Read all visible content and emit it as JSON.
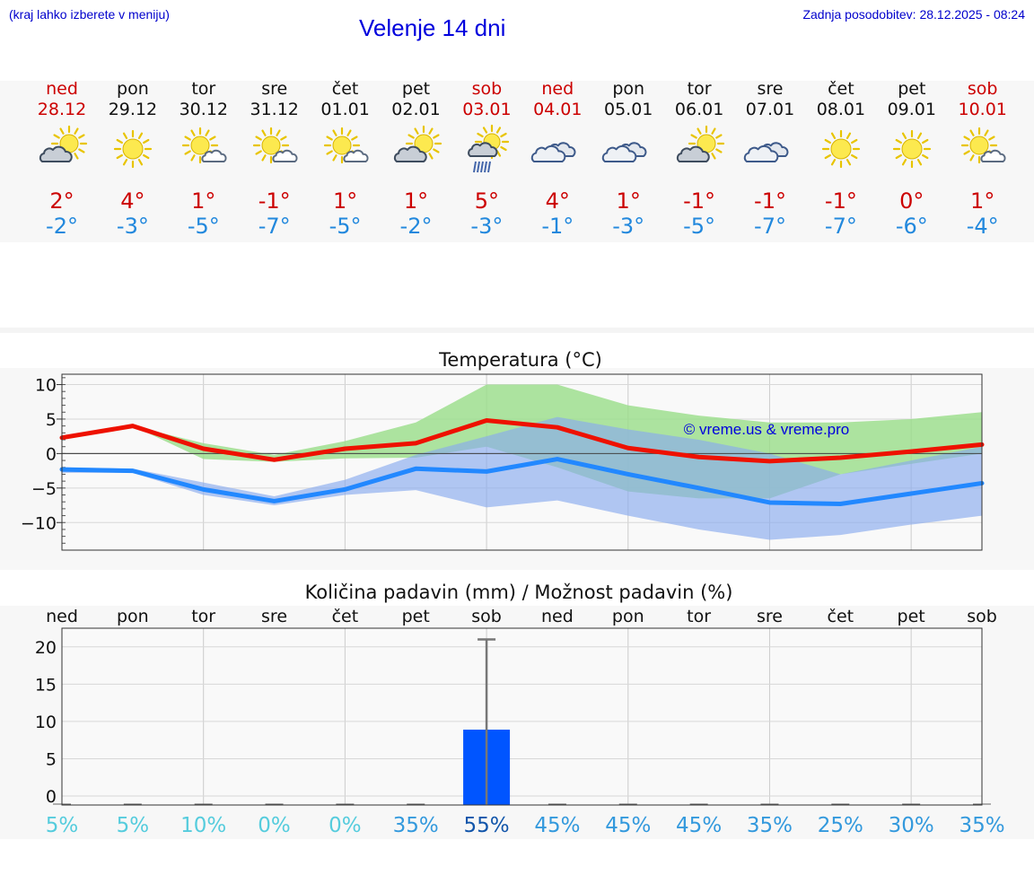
{
  "header": {
    "subtitle_left": "(kraj lahko izberete v meniju)",
    "title": "Velenje 14 dni",
    "updated": "Zadnja posodobitev: 28.12.2025 - 08:24"
  },
  "colors": {
    "max_line": "#ee1100",
    "min_line": "#2288ff",
    "max_band": "#99dd88",
    "min_band": "#88aaee",
    "bar": "#0055ff",
    "weekend": "#cc0000"
  },
  "days": [
    {
      "name": "ned",
      "date": "28.12",
      "weekend": true,
      "icon": "partly-cloudy-icon",
      "tmax": "2°",
      "tmin": "-2°"
    },
    {
      "name": "pon",
      "date": "29.12",
      "weekend": false,
      "icon": "sun-icon",
      "tmax": "4°",
      "tmin": "-3°"
    },
    {
      "name": "tor",
      "date": "30.12",
      "weekend": false,
      "icon": "sun-small-cloud-icon",
      "tmax": "1°",
      "tmin": "-5°"
    },
    {
      "name": "sre",
      "date": "31.12",
      "weekend": false,
      "icon": "sun-small-cloud-icon",
      "tmax": "-1°",
      "tmin": "-7°"
    },
    {
      "name": "čet",
      "date": "01.01",
      "weekend": false,
      "icon": "sun-small-cloud-icon",
      "tmax": "1°",
      "tmin": "-5°"
    },
    {
      "name": "pet",
      "date": "02.01",
      "weekend": false,
      "icon": "partly-cloudy-icon",
      "tmax": "1°",
      "tmin": "-2°"
    },
    {
      "name": "sob",
      "date": "03.01",
      "weekend": true,
      "icon": "sun-rain-icon",
      "tmax": "5°",
      "tmin": "-3°"
    },
    {
      "name": "ned",
      "date": "04.01",
      "weekend": true,
      "icon": "cloudy-icon",
      "tmax": "4°",
      "tmin": "-1°"
    },
    {
      "name": "pon",
      "date": "05.01",
      "weekend": false,
      "icon": "cloudy-icon",
      "tmax": "1°",
      "tmin": "-3°"
    },
    {
      "name": "tor",
      "date": "06.01",
      "weekend": false,
      "icon": "partly-cloudy-icon",
      "tmax": "-1°",
      "tmin": "-5°"
    },
    {
      "name": "sre",
      "date": "07.01",
      "weekend": false,
      "icon": "cloudy-icon",
      "tmax": "-1°",
      "tmin": "-7°"
    },
    {
      "name": "čet",
      "date": "08.01",
      "weekend": false,
      "icon": "sun-icon",
      "tmax": "-1°",
      "tmin": "-7°"
    },
    {
      "name": "pet",
      "date": "09.01",
      "weekend": false,
      "icon": "sun-icon",
      "tmax": "0°",
      "tmin": "-6°"
    },
    {
      "name": "sob",
      "date": "10.01",
      "weekend": true,
      "icon": "sun-small-cloud-icon",
      "tmax": "1°",
      "tmin": "-4°"
    }
  ],
  "chart_data": [
    {
      "type": "line",
      "title": "Temperatura (°C)",
      "watermark": "© vreme.us & vreme.pro",
      "ylim": [
        -14,
        11.5
      ],
      "yticks": [
        10,
        5,
        0,
        -5,
        -10
      ],
      "ytick_labels": [
        "10",
        "5",
        "0",
        "−5",
        "−10"
      ],
      "grid": true,
      "x": [
        0,
        1,
        2,
        3,
        4,
        5,
        6,
        7,
        8,
        9,
        10,
        11,
        12,
        13
      ],
      "series": [
        {
          "name": "max",
          "values": [
            2.3,
            4.0,
            0.7,
            -0.9,
            0.7,
            1.5,
            4.8,
            3.8,
            0.8,
            -0.5,
            -1.1,
            -0.6,
            0.3,
            1.3
          ]
        },
        {
          "name": "min",
          "values": [
            -2.3,
            -2.5,
            -5.2,
            -6.9,
            -5.2,
            -2.2,
            -2.6,
            -0.8,
            -3.0,
            -5.0,
            -7.1,
            -7.3,
            -5.8,
            -4.3
          ]
        }
      ],
      "bands": [
        {
          "name": "max_range",
          "upper": [
            2.3,
            4.0,
            1.5,
            -0.2,
            1.8,
            4.5,
            10.0,
            10.0,
            7.0,
            5.5,
            4.5,
            4.5,
            5.0,
            6.0
          ],
          "lower": [
            2.3,
            4.0,
            -0.8,
            -1.2,
            -0.7,
            -0.6,
            1.0,
            -2.0,
            -5.5,
            -6.5,
            -6.5,
            -3.0,
            -1.5,
            0.0
          ]
        },
        {
          "name": "min_range",
          "upper": [
            -2.0,
            -2.2,
            -4.2,
            -6.2,
            -3.8,
            -0.2,
            2.5,
            5.3,
            3.5,
            2.0,
            0.0,
            -3.0,
            -1.0,
            1.0
          ],
          "lower": [
            -2.8,
            -2.8,
            -6.0,
            -7.5,
            -6.0,
            -5.3,
            -7.8,
            -6.8,
            -9.0,
            -11.0,
            -12.5,
            -11.8,
            -10.3,
            -9.0
          ]
        }
      ]
    },
    {
      "type": "bar",
      "title": "Količina padavin (mm) / Možnost padavin (%)",
      "categories": [
        "ned",
        "pon",
        "tor",
        "sre",
        "čet",
        "pet",
        "sob",
        "ned",
        "pon",
        "tor",
        "sre",
        "čet",
        "pet",
        "sob"
      ],
      "values": [
        0,
        0,
        0,
        0,
        0,
        0,
        8.9,
        0,
        0,
        0,
        0,
        0,
        0,
        0
      ],
      "error_upper": [
        0,
        0,
        0,
        0,
        0,
        0,
        21,
        0,
        0,
        0,
        0,
        0,
        0,
        0
      ],
      "ylim": [
        -1.2,
        22.5
      ],
      "yticks": [
        20,
        15,
        10,
        5,
        0
      ],
      "ytick_labels": [
        "20",
        "15",
        "10",
        "5",
        "0"
      ],
      "grid": true,
      "probabilities": [
        "5%",
        "5%",
        "10%",
        "0%",
        "0%",
        "35%",
        "55%",
        "45%",
        "45%",
        "45%",
        "35%",
        "25%",
        "30%",
        "35%"
      ],
      "probability_values": [
        5,
        5,
        10,
        0,
        0,
        35,
        55,
        45,
        45,
        45,
        35,
        25,
        30,
        35
      ]
    }
  ]
}
